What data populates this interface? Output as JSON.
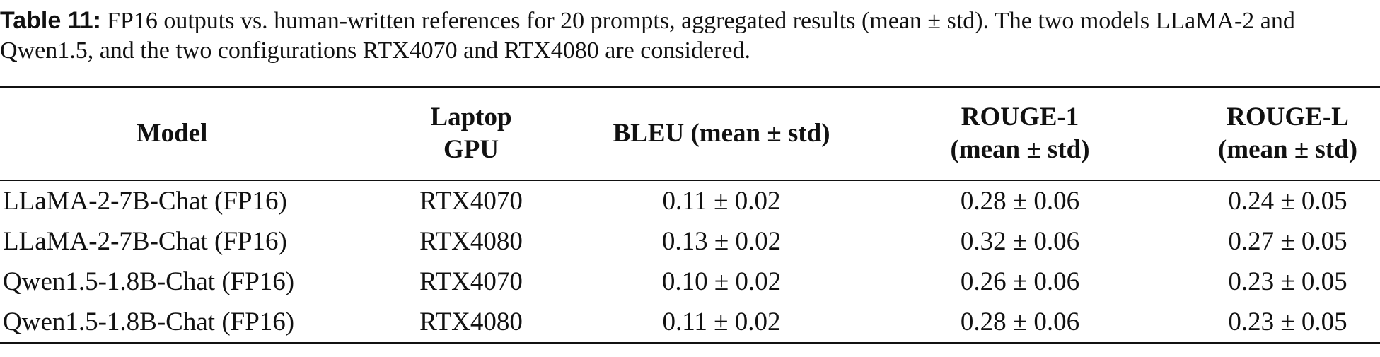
{
  "caption": {
    "label": "Table 11:",
    "text": "FP16 outputs vs. human-written references for 20 prompts, aggregated results (mean ± std). The two models LLaMA-2 and Qwen1.5, and the two configurations RTX4070 and RTX4080 are considered."
  },
  "table": {
    "headers": [
      "Model",
      "Laptop GPU",
      "BLEU (mean ± std)",
      "ROUGE-1 (mean ± std)",
      "ROUGE-L (mean ± std)"
    ],
    "rows": [
      [
        "LLaMA-2-7B-Chat (FP16)",
        "RTX4070",
        "0.11 ± 0.02",
        "0.28 ± 0.06",
        "0.24 ± 0.05"
      ],
      [
        "LLaMA-2-7B-Chat (FP16)",
        "RTX4080",
        "0.13 ± 0.02",
        "0.32 ± 0.06",
        "0.27 ± 0.05"
      ],
      [
        "Qwen1.5-1.8B-Chat (FP16)",
        "RTX4070",
        "0.10 ± 0.02",
        "0.26 ± 0.06",
        "0.23 ± 0.05"
      ],
      [
        "Qwen1.5-1.8B-Chat (FP16)",
        "RTX4080",
        "0.11 ± 0.02",
        "0.28 ± 0.06",
        "0.23 ± 0.05"
      ]
    ]
  }
}
